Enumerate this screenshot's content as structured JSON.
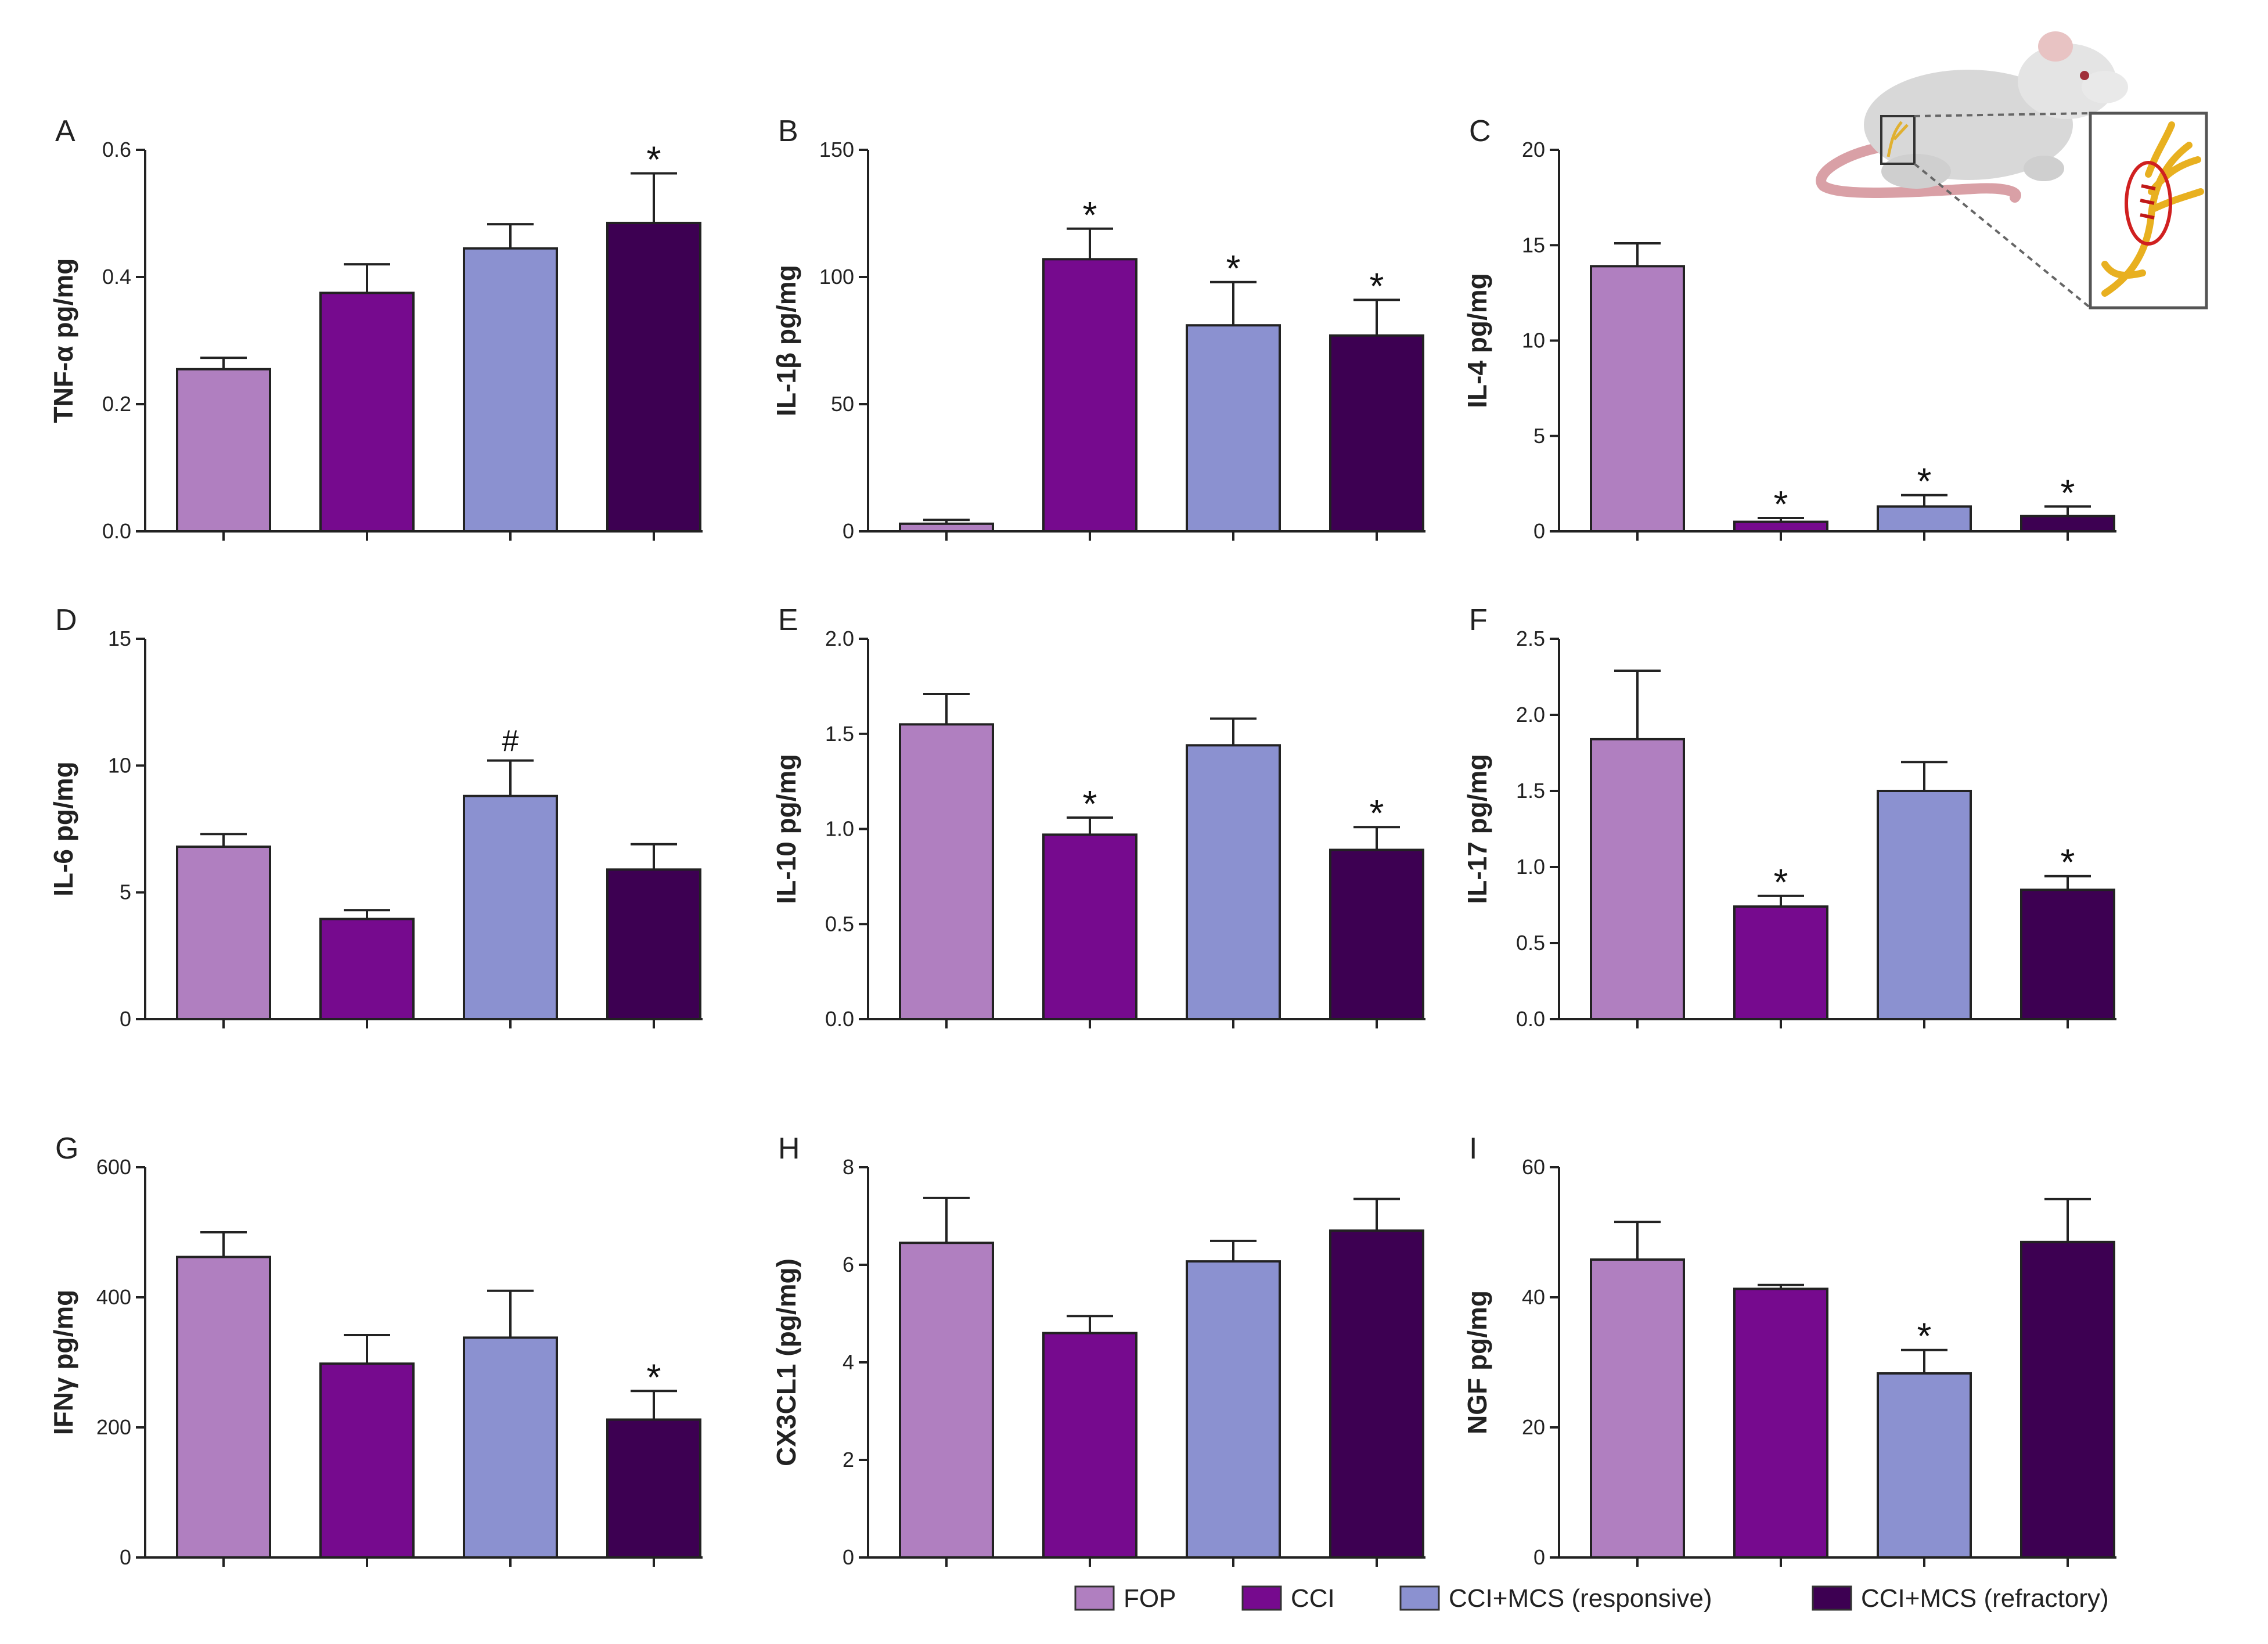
{
  "colors": {
    "FOP": "#b07fc0",
    "CCI": "#760a8e",
    "CCI+MCS (responsive)": "#8b91d0",
    "CCI+MCS (refractory)": "#3d0052"
  },
  "legend": {
    "entries": [
      "FOP",
      "CCI",
      "CCI+MCS (responsive)",
      "CCI+MCS (refractory)"
    ]
  },
  "illustration": {
    "name": "rat-sciatic-nerve-illustration"
  },
  "chart_data": [
    {
      "type": "bar",
      "panel": "A",
      "ylabel": "TNF-α pg/mg",
      "categories": [
        "FOP",
        "CCI",
        "CCI+MCS (responsive)",
        "CCI+MCS (refractory)"
      ],
      "values": [
        0.255,
        0.375,
        0.445,
        0.485
      ],
      "errors": [
        0.018,
        0.045,
        0.038,
        0.078
      ],
      "annotations": [
        "",
        "",
        "",
        "*"
      ],
      "ylim": [
        0,
        0.6
      ],
      "ticks": [
        0.0,
        0.2,
        0.4,
        0.6
      ],
      "tick_labels": [
        "0.0",
        "0.2",
        "0.4",
        "0.6"
      ]
    },
    {
      "type": "bar",
      "panel": "B",
      "ylabel": "IL-1β pg/mg",
      "categories": [
        "FOP",
        "CCI",
        "CCI+MCS (responsive)",
        "CCI+MCS (refractory)"
      ],
      "values": [
        3,
        107,
        81,
        77
      ],
      "errors": [
        1.5,
        12,
        17,
        14
      ],
      "annotations": [
        "",
        "*",
        "*",
        "*"
      ],
      "ylim": [
        0,
        150
      ],
      "ticks": [
        0,
        50,
        100,
        150
      ],
      "tick_labels": [
        "0",
        "50",
        "100",
        "150"
      ]
    },
    {
      "type": "bar",
      "panel": "C",
      "ylabel": "IL-4 pg/mg",
      "categories": [
        "FOP",
        "CCI",
        "CCI+MCS (responsive)",
        "CCI+MCS (refractory)"
      ],
      "values": [
        13.9,
        0.5,
        1.3,
        0.8
      ],
      "errors": [
        1.2,
        0.2,
        0.6,
        0.5
      ],
      "annotations": [
        "",
        "*",
        "*",
        "*"
      ],
      "ylim": [
        0,
        20
      ],
      "ticks": [
        0,
        5,
        10,
        15,
        20
      ],
      "tick_labels": [
        "0",
        "5",
        "10",
        "15",
        "20"
      ]
    },
    {
      "type": "bar",
      "panel": "D",
      "ylabel": "IL-6 pg/mg",
      "categories": [
        "FOP",
        "CCI",
        "CCI+MCS (responsive)",
        "CCI+MCS (refractory)"
      ],
      "values": [
        6.8,
        3.95,
        8.8,
        5.9
      ],
      "errors": [
        0.5,
        0.35,
        1.4,
        1.0
      ],
      "annotations": [
        "",
        "",
        "#",
        ""
      ],
      "ylim": [
        0,
        15
      ],
      "ticks": [
        0,
        5,
        10,
        15
      ],
      "tick_labels": [
        "0",
        "5",
        "10",
        "15"
      ]
    },
    {
      "type": "bar",
      "panel": "E",
      "ylabel": "IL-10 pg/mg",
      "categories": [
        "FOP",
        "CCI",
        "CCI+MCS (responsive)",
        "CCI+MCS (refractory)"
      ],
      "values": [
        1.55,
        0.97,
        1.44,
        0.89
      ],
      "errors": [
        0.16,
        0.09,
        0.14,
        0.12
      ],
      "annotations": [
        "",
        "*",
        "",
        "*"
      ],
      "ylim": [
        0,
        2.0
      ],
      "ticks": [
        0.0,
        0.5,
        1.0,
        1.5,
        2.0
      ],
      "tick_labels": [
        "0.0",
        "0.5",
        "1.0",
        "1.5",
        "2.0"
      ]
    },
    {
      "type": "bar",
      "panel": "F",
      "ylabel": "IL-17 pg/mg",
      "categories": [
        "FOP",
        "CCI",
        "CCI+MCS (responsive)",
        "CCI+MCS (refractory)"
      ],
      "values": [
        1.84,
        0.74,
        1.5,
        0.85
      ],
      "errors": [
        0.45,
        0.07,
        0.19,
        0.09
      ],
      "annotations": [
        "",
        "*",
        "",
        "*"
      ],
      "ylim": [
        0,
        2.5
      ],
      "ticks": [
        0.0,
        0.5,
        1.0,
        1.5,
        2.0,
        2.5
      ],
      "tick_labels": [
        "0.0",
        "0.5",
        "1.0",
        "1.5",
        "2.0",
        "2.5"
      ]
    },
    {
      "type": "bar",
      "panel": "G",
      "ylabel": "IFNγ pg/mg",
      "categories": [
        "FOP",
        "CCI",
        "CCI+MCS (responsive)",
        "CCI+MCS (refractory)"
      ],
      "values": [
        462,
        298,
        338,
        212
      ],
      "errors": [
        38,
        44,
        72,
        44
      ],
      "annotations": [
        "",
        "",
        "",
        "*"
      ],
      "ylim": [
        0,
        600
      ],
      "ticks": [
        0,
        200,
        400,
        600
      ],
      "tick_labels": [
        "0",
        "200",
        "400",
        "600"
      ]
    },
    {
      "type": "bar",
      "panel": "H",
      "ylabel": "CX3CL1 (pg/mg)",
      "categories": [
        "FOP",
        "CCI",
        "CCI+MCS (responsive)",
        "CCI+MCS (refractory)"
      ],
      "values": [
        6.45,
        4.6,
        6.07,
        6.7
      ],
      "errors": [
        0.92,
        0.35,
        0.42,
        0.65
      ],
      "annotations": [
        "",
        "",
        "",
        ""
      ],
      "ylim": [
        0,
        8
      ],
      "ticks": [
        0,
        2,
        4,
        6,
        8
      ],
      "tick_labels": [
        "0",
        "2",
        "4",
        "6",
        "8"
      ]
    },
    {
      "type": "bar",
      "panel": "I",
      "ylabel": "NGF pg/mg",
      "categories": [
        "FOP",
        "CCI",
        "CCI+MCS (responsive)",
        "CCI+MCS (refractory)"
      ],
      "values": [
        45.8,
        41.3,
        28.3,
        48.5
      ],
      "errors": [
        5.8,
        0.6,
        3.6,
        6.6
      ],
      "annotations": [
        "",
        "",
        "*",
        ""
      ],
      "ylim": [
        0,
        60
      ],
      "ticks": [
        0,
        20,
        40,
        60
      ],
      "tick_labels": [
        "0",
        "20",
        "40",
        "60"
      ]
    }
  ]
}
